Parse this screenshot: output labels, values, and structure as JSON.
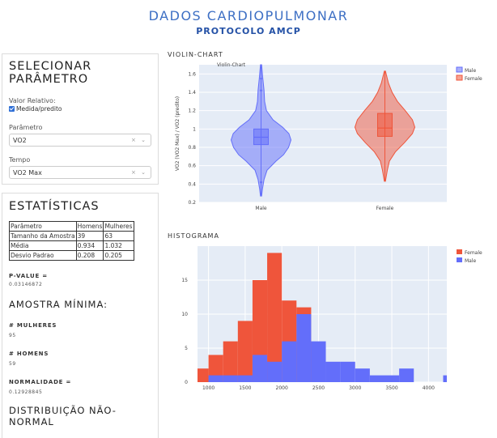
{
  "header": {
    "title": "DADOS CARDIOPULMONAR",
    "subtitle": "PROTOCOLO AMCP"
  },
  "params_panel": {
    "title_line1": "SELECIONAR",
    "title_line2": "PARÂMETRO",
    "valor_label": "Valor Relativo:",
    "checkbox_label": "Medida/predito",
    "checkbox_checked": true,
    "parametro_label": "Parâmetro",
    "parametro_value": "VO2",
    "tempo_label": "Tempo",
    "tempo_value": "VO2 Max",
    "select_controls": "× ⌄"
  },
  "stats_panel": {
    "title": "ESTATÍSTICAS",
    "table": {
      "header": [
        "Parâmetro",
        "Homens",
        "Mulheres"
      ],
      "rows": [
        [
          "Tamanho da Amostra",
          "39",
          "63"
        ],
        [
          "Média",
          "0.934",
          "1.032"
        ],
        [
          "Desvio Padrao",
          "0.208",
          "0.205"
        ]
      ]
    },
    "pvalue_label": "P-VALUE =",
    "pvalue": "0.03146872",
    "amostra_title": "AMOSTRA MÍNIMA:",
    "mulheres_label": "# MULHERES",
    "mulheres_value": "95",
    "homens_label": "# HOMENS",
    "homens_value": "59",
    "normalidade_label": "NORMALIDADE =",
    "normalidade_value": "0.12928845",
    "distrib_line1": "DISTRIBUIÇÃO NÃO-",
    "distrib_line2": "NORMAL"
  },
  "colors": {
    "male": "#636efa",
    "female": "#ef553b",
    "accent": "#3d6fc4"
  },
  "chart_data": [
    {
      "type": "violin",
      "section_title": "VIOLIN-CHART",
      "title": "Violin-Chart",
      "ylabel": "VO2 (VO2 Max) / VO2 (predito)",
      "ylim": [
        0.2,
        1.7
      ],
      "yticks": [
        0.2,
        0.4,
        0.6,
        0.8,
        1,
        1.2,
        1.4,
        1.6
      ],
      "categories": [
        "Male",
        "Female"
      ],
      "series": [
        {
          "name": "Male",
          "color": "#636efa",
          "min": 0.27,
          "q1": 0.83,
          "median": 0.91,
          "q3": 1.0,
          "max": 1.7,
          "density": [
            [
              0.27,
              0.02
            ],
            [
              0.35,
              0.05
            ],
            [
              0.45,
              0.1
            ],
            [
              0.55,
              0.2
            ],
            [
              0.65,
              0.5
            ],
            [
              0.72,
              0.75
            ],
            [
              0.8,
              0.92
            ],
            [
              0.88,
              1.0
            ],
            [
              0.95,
              0.93
            ],
            [
              1.02,
              0.72
            ],
            [
              1.1,
              0.4
            ],
            [
              1.2,
              0.18
            ],
            [
              1.3,
              0.12
            ],
            [
              1.42,
              0.1
            ],
            [
              1.55,
              0.06
            ],
            [
              1.7,
              0.02
            ]
          ],
          "outliers": [
            0.42,
            1.42,
            1.55
          ]
        },
        {
          "name": "Female",
          "color": "#ef553b",
          "min": 0.43,
          "q1": 0.92,
          "median": 1.01,
          "q3": 1.17,
          "max": 1.63,
          "density": [
            [
              0.43,
              0.02
            ],
            [
              0.55,
              0.08
            ],
            [
              0.65,
              0.15
            ],
            [
              0.75,
              0.35
            ],
            [
              0.85,
              0.65
            ],
            [
              0.95,
              0.92
            ],
            [
              1.02,
              1.0
            ],
            [
              1.1,
              0.92
            ],
            [
              1.2,
              0.68
            ],
            [
              1.3,
              0.42
            ],
            [
              1.4,
              0.24
            ],
            [
              1.5,
              0.12
            ],
            [
              1.63,
              0.02
            ]
          ],
          "outliers": []
        }
      ]
    },
    {
      "type": "histogram",
      "section_title": "HISTOGRAMA",
      "xlim": [
        850,
        4250
      ],
      "ylim": [
        0,
        20
      ],
      "xticks": [
        1000,
        1500,
        2000,
        2500,
        3000,
        3500,
        4000
      ],
      "yticks": [
        0,
        5,
        10,
        15
      ],
      "bin_width": 200,
      "series": [
        {
          "name": "Female",
          "color": "#ef553b",
          "bins": [
            [
              800,
              2
            ],
            [
              1000,
              4
            ],
            [
              1200,
              6
            ],
            [
              1400,
              9
            ],
            [
              1600,
              15
            ],
            [
              1800,
              19
            ],
            [
              2000,
              12
            ],
            [
              2200,
              11
            ],
            [
              2400,
              0
            ]
          ]
        },
        {
          "name": "Male",
          "color": "#636efa",
          "bins": [
            [
              1000,
              1
            ],
            [
              1200,
              1
            ],
            [
              1400,
              1
            ],
            [
              1600,
              4
            ],
            [
              1800,
              3
            ],
            [
              2000,
              6
            ],
            [
              2200,
              10
            ],
            [
              2400,
              6
            ],
            [
              2600,
              3
            ],
            [
              2800,
              3
            ],
            [
              3000,
              2
            ],
            [
              3200,
              1
            ],
            [
              3400,
              1
            ],
            [
              3600,
              2
            ],
            [
              3800,
              0
            ],
            [
              4000,
              0
            ],
            [
              4200,
              1
            ]
          ]
        }
      ]
    }
  ]
}
